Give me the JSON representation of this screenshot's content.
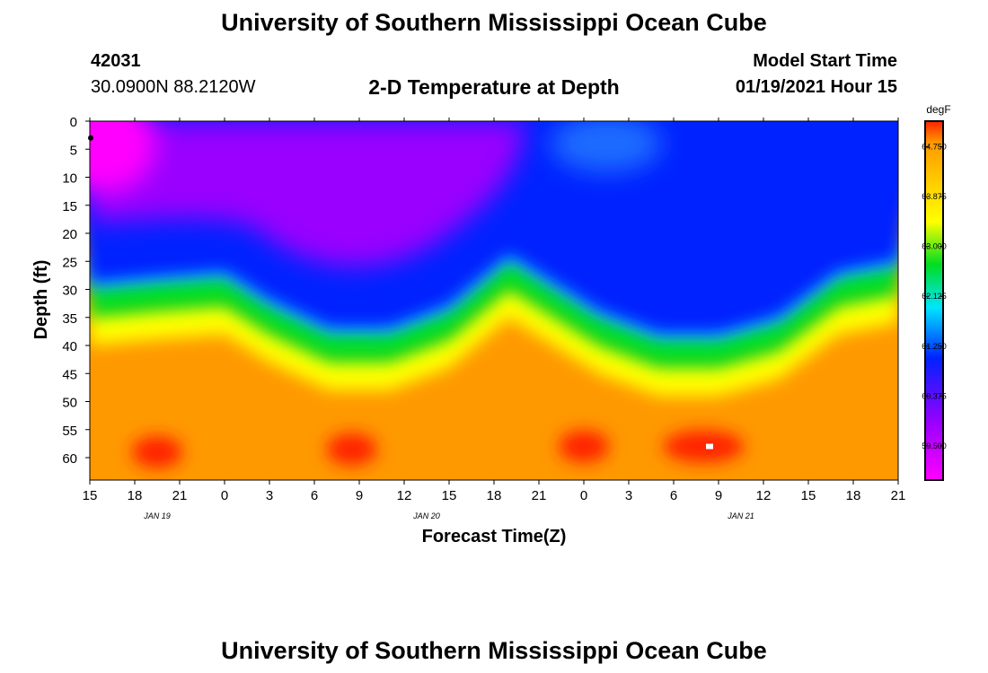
{
  "header": {
    "title_top": "University of Southern Mississippi Ocean Cube",
    "station_id": "42031",
    "coordinates": "30.0900N 88.2120W",
    "plot_title": "2-D Temperature at Depth",
    "model_label": "Model Start Time",
    "model_time": "01/19/2021 Hour 15",
    "title_bottom": "University of Southern Mississippi Ocean Cube"
  },
  "colors": {
    "magenta": "#ff00ff",
    "violet": "#9900ff",
    "blue": "#0022ff",
    "cyan": "#00e5ff",
    "green": "#00dd22",
    "yellow": "#ffff00",
    "orange": "#ff9900",
    "red": "#ff2200"
  },
  "chart_data": {
    "type": "heatmap",
    "title": "2-D Temperature at Depth",
    "xlabel": "Forecast Time(Z)",
    "ylabel": "Depth (ft)",
    "x_ticks": [
      "15",
      "18",
      "21",
      "0",
      "3",
      "6",
      "9",
      "12",
      "15",
      "18",
      "21",
      "0",
      "3",
      "6",
      "9",
      "12",
      "15",
      "18",
      "21"
    ],
    "date_labels": [
      {
        "label": "JAN 19",
        "after_tick_index": 1
      },
      {
        "label": "JAN 20",
        "after_tick_index": 7
      },
      {
        "label": "JAN 21",
        "after_tick_index": 14
      }
    ],
    "x_range_hours": [
      0,
      54
    ],
    "y_ticks": [
      "0",
      "5",
      "10",
      "15",
      "20",
      "25",
      "30",
      "35",
      "40",
      "45",
      "50",
      "55",
      "60"
    ],
    "y_range_ft": [
      0,
      64
    ],
    "colorbar": {
      "unit": "degF",
      "min": 58.9,
      "max": 65.2,
      "labels": [
        "64.750",
        "63.875",
        "63.000",
        "62.125",
        "61.250",
        "60.375",
        "59.500"
      ]
    },
    "isotherm_62_depth_ft": [
      {
        "hour": 0,
        "depth": 27
      },
      {
        "hour": 4,
        "depth": 26
      },
      {
        "hour": 9,
        "depth": 25
      },
      {
        "hour": 12,
        "depth": 30
      },
      {
        "hour": 16,
        "depth": 35
      },
      {
        "hour": 20,
        "depth": 35
      },
      {
        "hour": 24,
        "depth": 31
      },
      {
        "hour": 28,
        "depth": 22
      },
      {
        "hour": 31,
        "depth": 27
      },
      {
        "hour": 34,
        "depth": 32
      },
      {
        "hour": 38,
        "depth": 36
      },
      {
        "hour": 42,
        "depth": 36
      },
      {
        "hour": 46,
        "depth": 33
      },
      {
        "hour": 50,
        "depth": 25
      },
      {
        "hour": 54,
        "depth": 23
      }
    ],
    "warm_spots": [
      {
        "hour": 4.5,
        "depth": 59,
        "value": 65.0
      },
      {
        "hour": 17.5,
        "depth": 58.5,
        "value": 64.9
      },
      {
        "hour": 33,
        "depth": 58,
        "value": 65.1
      },
      {
        "hour": 41,
        "depth": 58,
        "value": 65.1
      }
    ]
  }
}
